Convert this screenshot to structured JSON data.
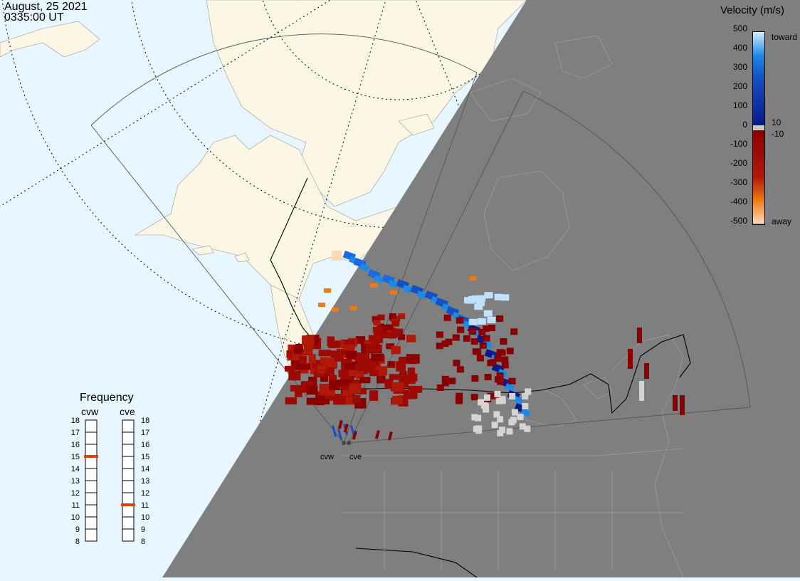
{
  "header": {
    "date": "August, 25 2021",
    "time": "0335:00 UT"
  },
  "velocity_legend": {
    "title": "Velocity (m/s)",
    "ticks": [
      "500",
      "400",
      "300",
      "200",
      "100",
      "0",
      "-100",
      "-200",
      "-300",
      "-400",
      "-500"
    ],
    "near_zero_labels": [
      "10",
      "-10"
    ],
    "toward_label": "toward",
    "away_label": "away",
    "colors": {
      "toward_max": "#d6eeff",
      "toward_mid": "#1a8ae8",
      "toward_min": "#0a1a8a",
      "zero": "#c8c8c8",
      "away_min": "#8a0000",
      "away_mid": "#d84a10",
      "away_max": "#ffd8b8"
    }
  },
  "frequency_panel": {
    "title": "Frequency",
    "radars": [
      {
        "name": "cvw",
        "selected_mhz": 15
      },
      {
        "name": "cve",
        "selected_mhz": 11
      }
    ],
    "scale": [
      "18",
      "17",
      "16",
      "15",
      "14",
      "13",
      "12",
      "11",
      "10",
      "9",
      "8"
    ],
    "marker_color": "#e04010"
  },
  "radar_sites": [
    {
      "label": "cvw"
    },
    {
      "label": "cve"
    }
  ],
  "map_colors": {
    "ocean": "#e8f6ff",
    "land": "#fbf7e4",
    "night": "#7f7f7f",
    "boundary": "#000000"
  }
}
